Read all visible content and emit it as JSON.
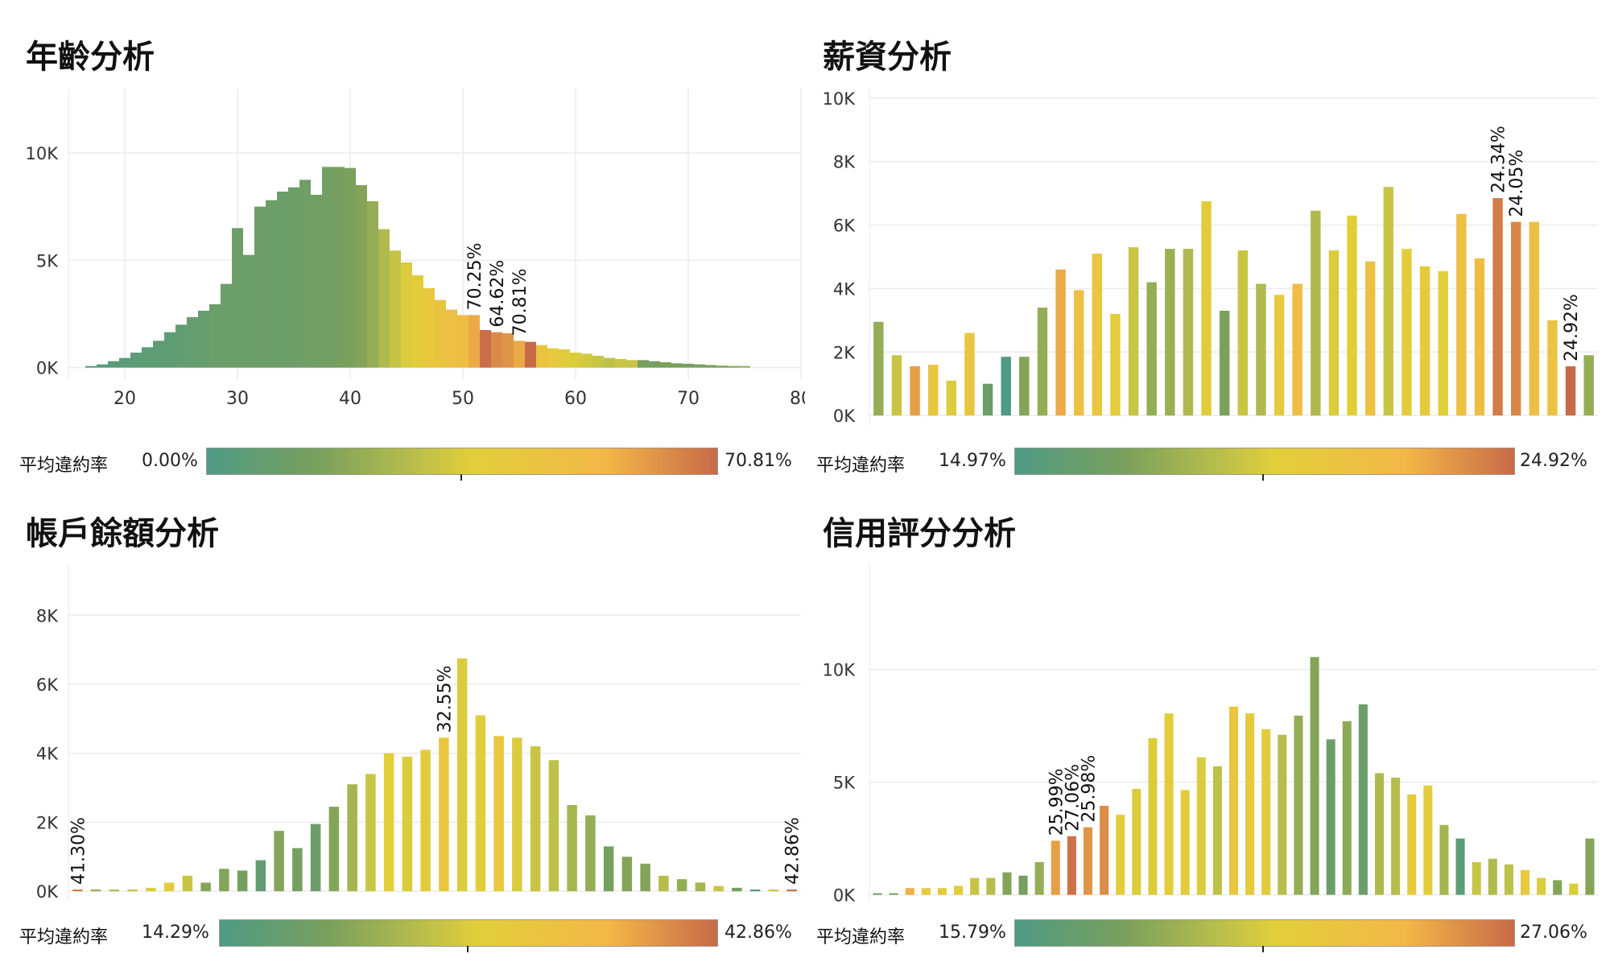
{
  "legend_label": "平均違約率",
  "colors": {
    "low": "#4e9a84",
    "mid": "#e1cf3a",
    "high": "#c86a48",
    "grid": "#ececec"
  },
  "chart_data": [
    {
      "type": "bar",
      "title": "年齡分析",
      "xlabel": "",
      "ylabel": "",
      "xlim": [
        15,
        80
      ],
      "ylim": [
        -500,
        13000
      ],
      "xticks": [
        "20",
        "30",
        "40",
        "50",
        "60",
        "70",
        "80"
      ],
      "yticks": [
        "10K",
        "5K",
        "0K"
      ],
      "x": [
        17,
        18,
        19,
        20,
        21,
        22,
        23,
        24,
        25,
        26,
        27,
        28,
        29,
        30,
        31,
        32,
        33,
        34,
        35,
        36,
        37,
        38,
        39,
        40,
        41,
        42,
        43,
        44,
        45,
        46,
        47,
        48,
        49,
        50,
        51,
        52,
        53,
        54,
        55,
        56,
        57,
        58,
        59,
        60,
        61,
        62,
        63,
        64,
        65,
        66,
        67,
        68,
        69,
        70,
        71,
        72,
        73,
        74,
        75
      ],
      "values": [
        50,
        150,
        300,
        450,
        700,
        950,
        1250,
        1650,
        2000,
        2350,
        2650,
        2950,
        3900,
        6500,
        5250,
        7500,
        7800,
        8200,
        8400,
        8750,
        8050,
        9350,
        9350,
        9300,
        8500,
        7750,
        6450,
        5450,
        4900,
        4300,
        3700,
        3150,
        2700,
        2450,
        2450,
        1750,
        1650,
        1600,
        1250,
        1200,
        1050,
        900,
        850,
        700,
        650,
        550,
        450,
        400,
        350,
        350,
        300,
        250,
        200,
        180,
        150,
        120,
        90,
        60,
        40
      ],
      "rates": [
        0.05,
        0.05,
        0.05,
        0.06,
        0.07,
        0.08,
        0.08,
        0.08,
        0.1,
        0.12,
        0.12,
        0.15,
        0.15,
        0.15,
        0.15,
        0.16,
        0.15,
        0.15,
        0.16,
        0.17,
        0.18,
        0.18,
        0.2,
        0.22,
        0.25,
        0.3,
        0.38,
        0.44,
        0.5,
        0.55,
        0.6,
        0.65,
        0.7,
        0.72,
        0.82,
        0.99,
        0.91,
        0.88,
        0.82,
        1.0,
        0.65,
        0.6,
        0.55,
        0.5,
        0.48,
        0.45,
        0.42,
        0.45,
        0.45,
        0.2,
        0.2,
        0.22,
        0.22,
        0.2,
        0.2,
        0.22,
        0.22,
        0.25,
        0.3
      ],
      "annotations": [
        {
          "x": 51,
          "label": "70.25%"
        },
        {
          "x": 53,
          "label": "64.62%"
        },
        {
          "x": 55,
          "label": "70.81%"
        }
      ],
      "legend_min": "0.00%",
      "legend_max": "70.81%"
    },
    {
      "type": "bar",
      "title": "薪資分析",
      "xlabel": "",
      "ylabel": "",
      "ylim": [
        -300,
        10300
      ],
      "yticks": [
        "10K",
        "8K",
        "6K",
        "4K",
        "2K",
        "0K"
      ],
      "values": [
        2950,
        1900,
        1550,
        1600,
        1100,
        2600,
        1000,
        1850,
        1850,
        3400,
        4600,
        3950,
        5100,
        3200,
        5300,
        4200,
        5250,
        5250,
        6750,
        3300,
        5200,
        4150,
        3800,
        4150,
        6450,
        5200,
        6300,
        4850,
        7200,
        5250,
        4700,
        4550,
        6350,
        4950,
        6850,
        6100,
        6100,
        3000,
        1550,
        1900
      ],
      "rates": [
        0.3,
        0.45,
        0.85,
        0.62,
        0.5,
        0.62,
        0.15,
        0.0,
        0.25,
        0.3,
        0.82,
        0.7,
        0.62,
        0.55,
        0.45,
        0.3,
        0.32,
        0.38,
        0.55,
        0.22,
        0.45,
        0.38,
        0.58,
        0.72,
        0.38,
        0.5,
        0.52,
        0.68,
        0.45,
        0.55,
        0.58,
        0.52,
        0.7,
        0.72,
        0.95,
        0.92,
        0.7,
        0.65,
        1.0,
        0.3
      ],
      "annotations": [
        {
          "index": 34,
          "label": "24.34%"
        },
        {
          "index": 35,
          "label": "24.05%"
        },
        {
          "index": 38,
          "label": "24.92%"
        }
      ],
      "legend_min": "14.97%",
      "legend_max": "24.92%"
    },
    {
      "type": "bar",
      "title": "帳戶餘額分析",
      "xlabel": "",
      "ylabel": "",
      "ylim": [
        -300,
        9500
      ],
      "yticks": [
        "8K",
        "6K",
        "4K",
        "2K",
        "0K"
      ],
      "values": [
        50,
        50,
        30,
        50,
        100,
        250,
        450,
        250,
        650,
        600,
        900,
        1750,
        1250,
        1950,
        2450,
        3100,
        3400,
        4000,
        3900,
        4100,
        4450,
        6750,
        5100,
        4500,
        4450,
        4200,
        3800,
        2500,
        2200,
        1300,
        1000,
        800,
        450,
        350,
        250,
        150,
        100,
        50,
        50,
        50
      ],
      "rates": [
        0.95,
        0.3,
        0.35,
        0.45,
        0.5,
        0.55,
        0.45,
        0.25,
        0.25,
        0.2,
        0.1,
        0.25,
        0.2,
        0.15,
        0.25,
        0.35,
        0.45,
        0.52,
        0.5,
        0.55,
        0.62,
        0.5,
        0.52,
        0.6,
        0.5,
        0.45,
        0.42,
        0.35,
        0.3,
        0.2,
        0.25,
        0.25,
        0.4,
        0.3,
        0.35,
        0.45,
        0.2,
        0.0,
        0.45,
        1.0
      ],
      "annotations": [
        {
          "index": 0,
          "label": "41.30%"
        },
        {
          "index": 20,
          "label": "32.55%"
        },
        {
          "index": 39,
          "label": "42.86%"
        }
      ],
      "legend_min": "14.29%",
      "legend_max": "42.86%"
    },
    {
      "type": "bar",
      "title": "信用評分分析",
      "xlabel": "",
      "ylabel": "",
      "ylim": [
        -300,
        14700
      ],
      "yticks": [
        "10K",
        "5K",
        "0K"
      ],
      "values": [
        50,
        50,
        300,
        300,
        300,
        400,
        750,
        750,
        1000,
        850,
        1450,
        2400,
        2600,
        3000,
        3950,
        3550,
        4700,
        6950,
        8050,
        4650,
        6100,
        5700,
        8350,
        8050,
        7350,
        7100,
        7950,
        10550,
        6900,
        7700,
        8450,
        5400,
        5200,
        4450,
        4850,
        3100,
        2500,
        1450,
        1600,
        1350,
        1100,
        750,
        650,
        500,
        2500
      ],
      "rates": [
        0.2,
        0.2,
        0.8,
        0.6,
        0.55,
        0.55,
        0.45,
        0.4,
        0.25,
        0.2,
        0.3,
        0.85,
        0.98,
        0.88,
        0.9,
        0.55,
        0.5,
        0.5,
        0.55,
        0.55,
        0.5,
        0.42,
        0.62,
        0.58,
        0.55,
        0.4,
        0.3,
        0.25,
        0.15,
        0.28,
        0.15,
        0.38,
        0.4,
        0.58,
        0.55,
        0.35,
        0.08,
        0.45,
        0.38,
        0.42,
        0.6,
        0.5,
        0.25,
        0.5,
        0.25
      ],
      "annotations": [
        {
          "index": 11,
          "label": "25.99%"
        },
        {
          "index": 12,
          "label": "27.06%"
        },
        {
          "index": 13,
          "label": "25.98%"
        }
      ],
      "legend_min": "15.79%",
      "legend_max": "27.06%"
    }
  ]
}
